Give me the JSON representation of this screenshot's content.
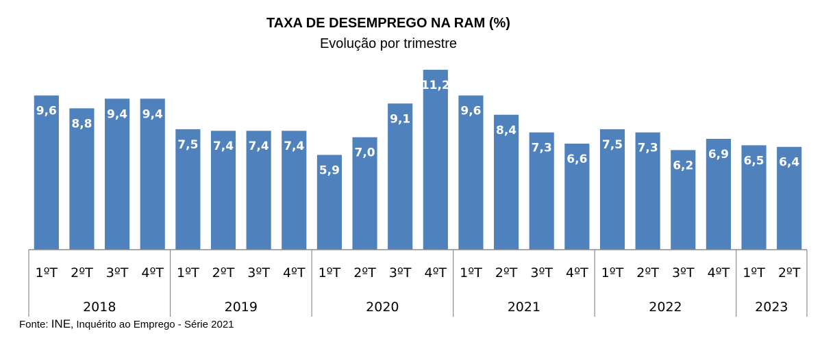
{
  "chart_data": {
    "type": "bar",
    "title": "TAXA DE DESEMPREGO NA RAM (%)",
    "subtitle": "Evolução por trimestre",
    "xlabel": "",
    "ylabel": "",
    "ylim": [
      0,
      11.2
    ],
    "grid": false,
    "legend": "none",
    "groups": [
      {
        "year": "2018",
        "categories": [
          "1ºT",
          "2ºT",
          "3ºT",
          "4ºT"
        ],
        "values": [
          9.6,
          8.8,
          9.4,
          9.4
        ],
        "labels": [
          "9,6",
          "8,8",
          "9,4",
          "9,4"
        ]
      },
      {
        "year": "2019",
        "categories": [
          "1ºT",
          "2ºT",
          "3ºT",
          "4ºT"
        ],
        "values": [
          7.5,
          7.4,
          7.4,
          7.4
        ],
        "labels": [
          "7,5",
          "7,4",
          "7,4",
          "7,4"
        ]
      },
      {
        "year": "2020",
        "categories": [
          "1ºT",
          "2ºT",
          "3ºT",
          "4ºT"
        ],
        "values": [
          5.9,
          7.0,
          9.1,
          11.2
        ],
        "labels": [
          "5,9",
          "7,0",
          "9,1",
          "11,2"
        ]
      },
      {
        "year": "2021",
        "categories": [
          "1ºT",
          "2ºT",
          "3ºT",
          "4ºT"
        ],
        "values": [
          9.6,
          8.4,
          7.3,
          6.6
        ],
        "labels": [
          "9,6",
          "8,4",
          "7,3",
          "6,6"
        ]
      },
      {
        "year": "2022",
        "categories": [
          "1ºT",
          "2ºT",
          "3ºT",
          "4ºT"
        ],
        "values": [
          7.5,
          7.3,
          6.2,
          6.9
        ],
        "labels": [
          "7,5",
          "7,3",
          "6,2",
          "6,9"
        ]
      },
      {
        "year": "2023",
        "categories": [
          "1ºT",
          "2ºT"
        ],
        "values": [
          6.5,
          6.4
        ],
        "labels": [
          "6,5",
          "6,4"
        ]
      }
    ],
    "bar_color": "#4F81BD",
    "label_color": "#FFFFFF"
  },
  "source": {
    "prefix": "Fonte: ",
    "org": "INE",
    "rest": ", Inquérito ao Emprego - Série 2021"
  },
  "colors": {
    "bar": "#4F81BD",
    "axis": "#8C8C8C",
    "text": "#000000"
  }
}
